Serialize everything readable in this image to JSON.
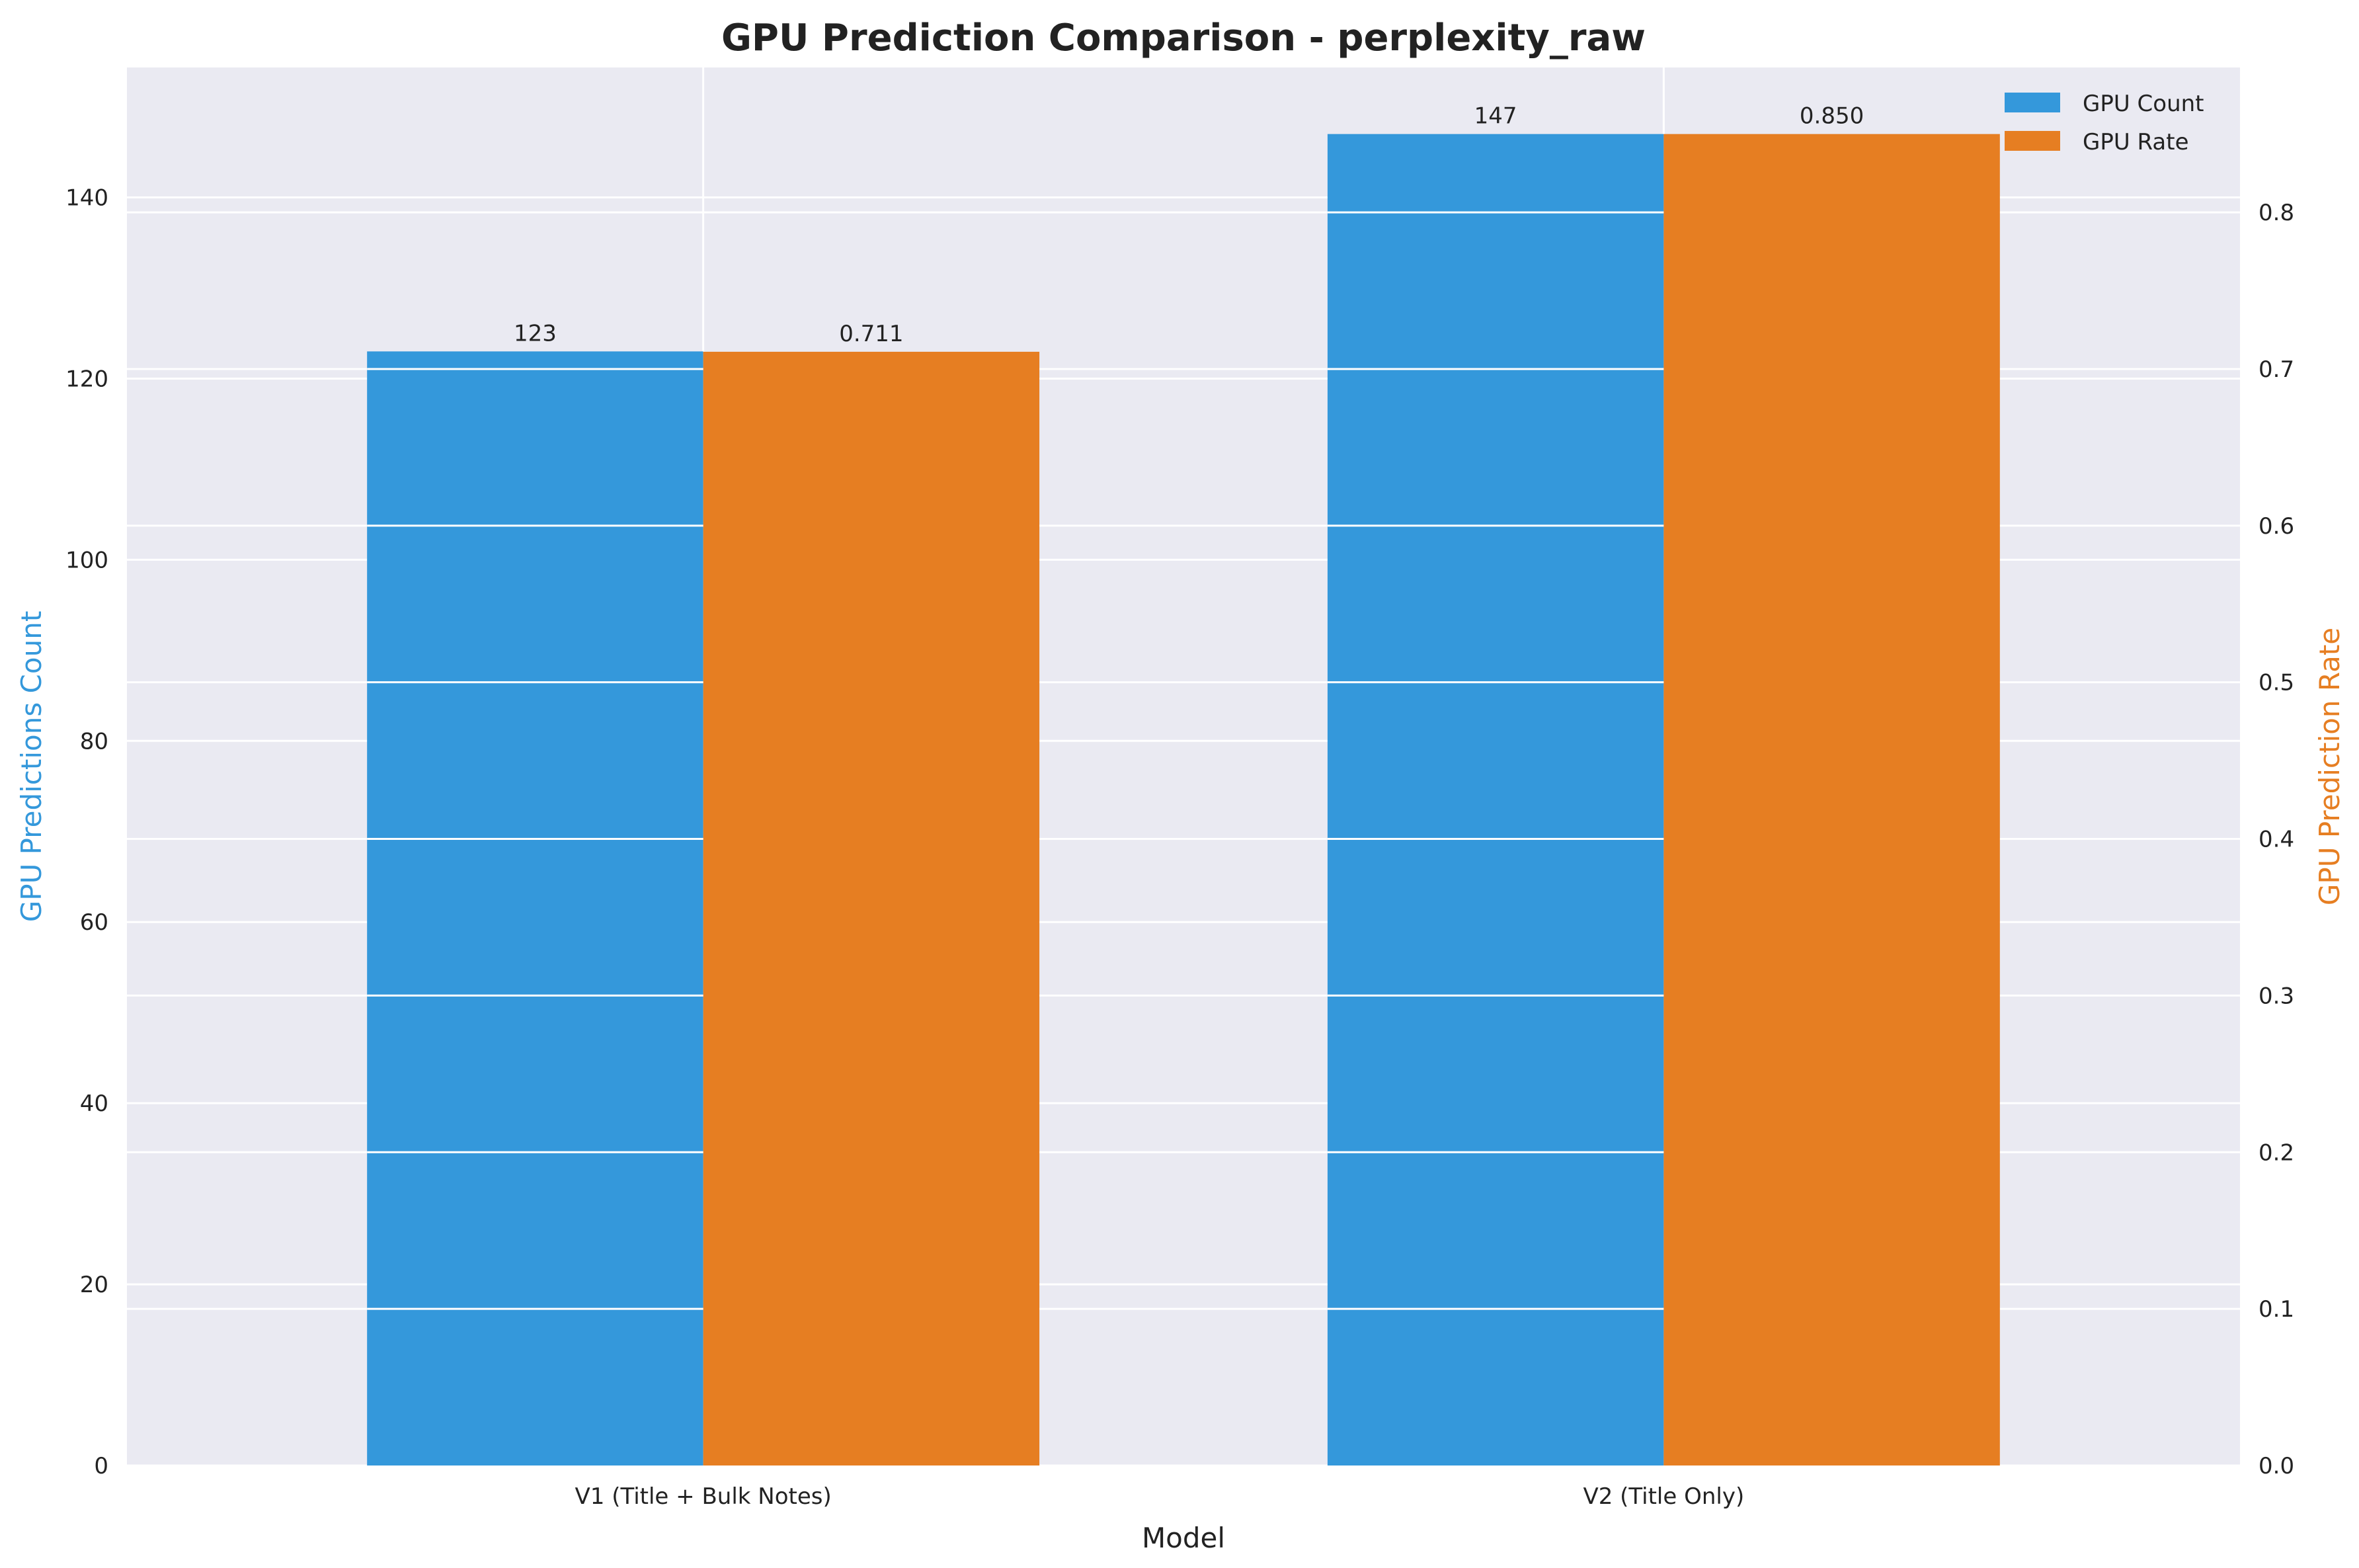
{
  "chart_data": {
    "type": "bar",
    "title": "GPU Prediction Comparison - perplexity_raw",
    "xlabel": "Model",
    "ylabel_left": "GPU Predictions Count",
    "ylabel_right": "GPU Prediction Rate",
    "categories": [
      "V1 (Title + Bulk Notes)",
      "V2 (Title Only)"
    ],
    "series": [
      {
        "name": "GPU Count",
        "axis": "left",
        "values": [
          123,
          147
        ],
        "labels": [
          "123",
          "147"
        ],
        "color": "#3498db"
      },
      {
        "name": "GPU Rate",
        "axis": "right",
        "values": [
          0.711,
          0.85
        ],
        "labels": [
          "0.711",
          "0.850"
        ],
        "color": "#e67e22"
      }
    ],
    "ylim_left": [
      0,
      154.35
    ],
    "ylim_right": [
      0,
      0.8925
    ],
    "yticks_left": [
      0,
      20,
      40,
      60,
      80,
      100,
      120,
      140
    ],
    "yticks_right": [
      0.0,
      0.1,
      0.2,
      0.3,
      0.4,
      0.5,
      0.6,
      0.7,
      0.8
    ],
    "yticks_right_labels": [
      "0.0",
      "0.1",
      "0.2",
      "0.3",
      "0.4",
      "0.5",
      "0.6",
      "0.7",
      "0.8"
    ],
    "grid": true,
    "legend_position": "top-right",
    "colors": {
      "background": "#eaeaf2",
      "grid": "#ffffff",
      "left_axis_label": "#3498db",
      "right_axis_label": "#e67e22"
    }
  }
}
